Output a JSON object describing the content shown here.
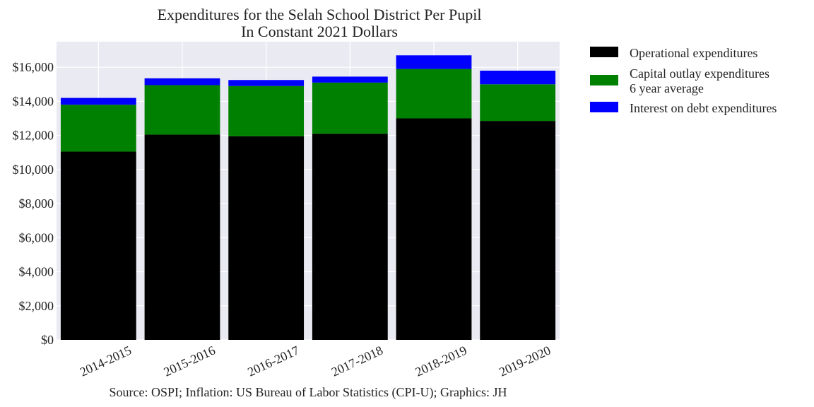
{
  "chart_data": {
    "type": "bar",
    "stacked": true,
    "title": "Expenditures for the Selah School District Per Pupil",
    "subtitle": "In Constant 2021 Dollars",
    "xlabel": "",
    "ylabel": "",
    "categories": [
      "2014-2015",
      "2015-2016",
      "2016-2017",
      "2017-2018",
      "2018-2019",
      "2019-2020"
    ],
    "series": [
      {
        "name": "Operational expenditures",
        "color": "#000000",
        "values": [
          11050,
          12050,
          11950,
          12100,
          13000,
          12850
        ]
      },
      {
        "name": "Capital outlay expenditures\n6 year average",
        "name_lines": [
          "Capital outlay expenditures",
          "6 year average"
        ],
        "color": "#008000",
        "values": [
          2750,
          2900,
          2950,
          3000,
          2900,
          2150
        ]
      },
      {
        "name": "Interest on debt expenditures",
        "color": "#0000ff",
        "values": [
          400,
          400,
          350,
          350,
          800,
          800
        ]
      }
    ],
    "ylim": [
      0,
      17500
    ],
    "yticks": [
      0,
      2000,
      4000,
      6000,
      8000,
      10000,
      12000,
      14000,
      16000
    ],
    "ytick_labels": [
      "$0",
      "$2,000",
      "$4,000",
      "$6,000",
      "$8,000",
      "$10,000",
      "$12,000",
      "$14,000",
      "$16,000"
    ],
    "grid": true,
    "legend_position": "outside-top-right",
    "xtick_rotation": 25
  },
  "source": "Source: OSPI; Inflation: US Bureau of Labor Statistics (CPI-U); Graphics: JH",
  "colors": {
    "plot_background": "#eaeaf2",
    "grid": "#ffffff"
  }
}
